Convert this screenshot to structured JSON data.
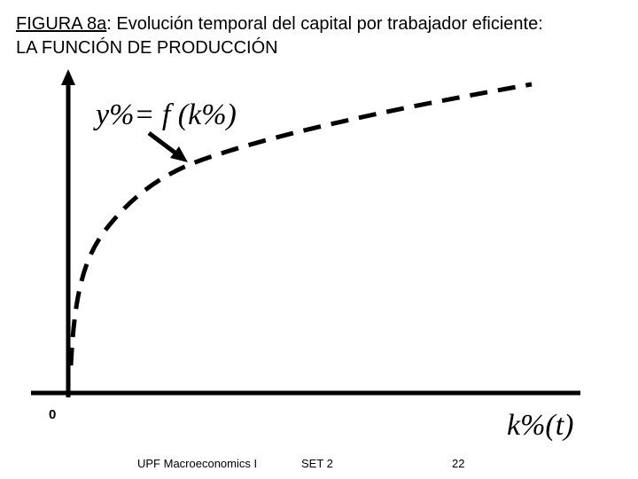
{
  "header": {
    "figure_label": "FIGURA 8a",
    "title_rest": ": Evolución temporal del capital por trabajador eficiente:",
    "title_line2": "LA FUNCIÓN DE PRODUCCIÓN"
  },
  "diagram": {
    "curve_label": "y%= f (k%)",
    "origin_label": "0",
    "x_axis_label": "k%(t)"
  },
  "footer": {
    "course": "UPF Macroeconomics I",
    "set": "SET 2",
    "page": "22"
  }
}
